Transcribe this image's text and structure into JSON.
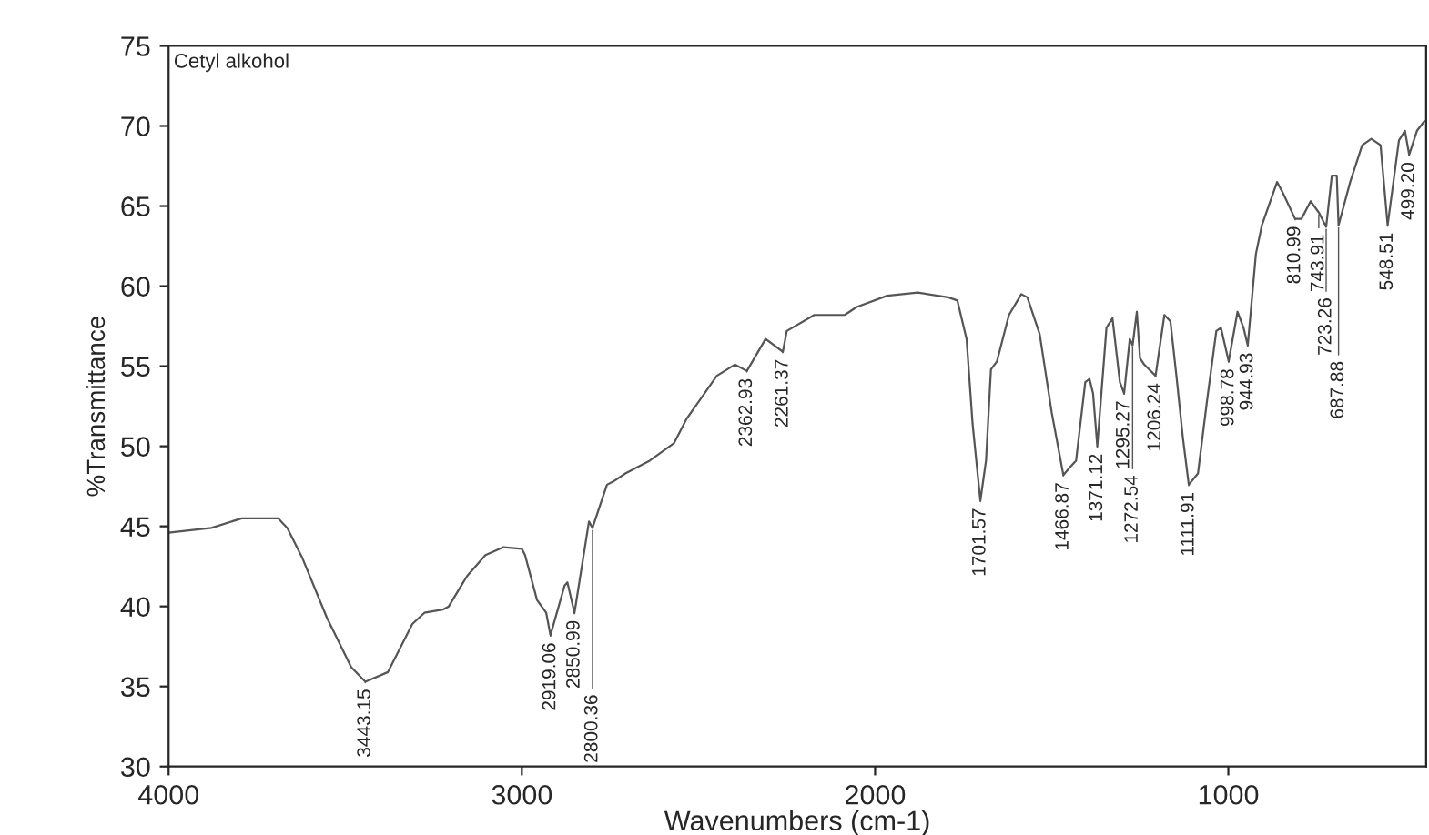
{
  "chart_data": {
    "type": "line",
    "title": "Cetyl alkohol",
    "xlabel": "Wavenumbers (cm-1)",
    "ylabel": "%Transmittance",
    "xlim": [
      4000,
      440
    ],
    "ylim": [
      30,
      75
    ],
    "xticks": [
      4000,
      3000,
      2000,
      1000
    ],
    "yticks": [
      30,
      35,
      40,
      45,
      50,
      55,
      60,
      65,
      70,
      75
    ],
    "grid": false,
    "marker": "none",
    "line_style": "solid",
    "series": [
      {
        "color": "#555555",
        "x": [
          4000,
          3879,
          3793,
          3690,
          3664,
          3621,
          3552,
          3483,
          3443,
          3379,
          3310,
          3276,
          3224,
          3207,
          3155,
          3103,
          3052,
          3000,
          2991,
          2957,
          2931,
          2919,
          2879,
          2871,
          2851,
          2810,
          2800,
          2759,
          2741,
          2707,
          2638,
          2569,
          2534,
          2448,
          2397,
          2363,
          2310,
          2261,
          2250,
          2172,
          2086,
          2052,
          1966,
          1879,
          1793,
          1767,
          1741,
          1724,
          1702,
          1686,
          1672,
          1655,
          1621,
          1586,
          1569,
          1534,
          1500,
          1467,
          1448,
          1431,
          1405,
          1393,
          1383,
          1371,
          1345,
          1328,
          1307,
          1295,
          1279,
          1271,
          1259,
          1250,
          1238,
          1206,
          1181,
          1164,
          1147,
          1129,
          1112,
          1086,
          1060,
          1034,
          1021,
          999,
          974,
          957,
          945,
          922,
          905,
          862,
          845,
          811,
          793,
          767,
          744,
          723,
          707,
          693,
          688,
          655,
          621,
          595,
          569,
          549,
          517,
          500,
          488,
          466,
          445
        ],
        "values": [
          44.6,
          44.9,
          45.5,
          45.5,
          44.9,
          43.0,
          39.3,
          36.2,
          35.3,
          35.9,
          38.9,
          39.6,
          39.8,
          40.0,
          41.9,
          43.2,
          43.7,
          43.6,
          43.2,
          40.4,
          39.6,
          38.2,
          41.3,
          41.5,
          39.6,
          45.3,
          44.9,
          47.6,
          47.8,
          48.3,
          49.1,
          50.2,
          51.7,
          54.4,
          55.1,
          54.7,
          56.7,
          55.9,
          57.2,
          58.2,
          58.2,
          58.7,
          59.4,
          59.6,
          59.3,
          59.1,
          56.7,
          51.4,
          46.6,
          49.1,
          54.8,
          55.3,
          58.2,
          59.5,
          59.3,
          57.0,
          52.1,
          48.2,
          48.7,
          49.1,
          54.0,
          54.2,
          53.3,
          50.0,
          57.4,
          58.0,
          54.0,
          53.3,
          56.7,
          56.3,
          58.4,
          55.5,
          55.1,
          54.4,
          58.2,
          57.8,
          54.4,
          50.6,
          47.6,
          48.3,
          52.9,
          57.2,
          57.4,
          55.3,
          58.4,
          57.4,
          56.3,
          62.0,
          63.8,
          66.5,
          65.8,
          64.2,
          64.2,
          65.3,
          64.6,
          63.7,
          66.9,
          66.9,
          63.8,
          66.5,
          68.8,
          69.2,
          68.8,
          63.8,
          69.1,
          69.7,
          68.2,
          69.7,
          70.3
        ]
      }
    ],
    "annotations": [
      {
        "text": "3443.15",
        "x": 3443,
        "y": 35.3
      },
      {
        "text": "2919.06",
        "x": 2919,
        "y": 38.2
      },
      {
        "text": "2850.99",
        "x": 2851,
        "y": 39.6
      },
      {
        "text": "2800.36",
        "x": 2800,
        "y": 44.9
      },
      {
        "text": "2362.93",
        "x": 2363,
        "y": 54.7
      },
      {
        "text": "2261.37",
        "x": 2261,
        "y": 55.9
      },
      {
        "text": "1701.57",
        "x": 1702,
        "y": 46.6
      },
      {
        "text": "1466.87",
        "x": 1467,
        "y": 48.2
      },
      {
        "text": "1371.12",
        "x": 1371,
        "y": 50.0
      },
      {
        "text": "1295.27",
        "x": 1295,
        "y": 53.3
      },
      {
        "text": "1272.54",
        "x": 1271,
        "y": 56.3
      },
      {
        "text": "1206.24",
        "x": 1206,
        "y": 54.4
      },
      {
        "text": "1111.91",
        "x": 1112,
        "y": 47.6
      },
      {
        "text": "998.78",
        "x": 999,
        "y": 55.3
      },
      {
        "text": "944.93",
        "x": 945,
        "y": 56.3
      },
      {
        "text": "810.99",
        "x": 811,
        "y": 64.2
      },
      {
        "text": "743.91",
        "x": 744,
        "y": 64.6
      },
      {
        "text": "723.26",
        "x": 723,
        "y": 63.7
      },
      {
        "text": "687.88",
        "x": 688,
        "y": 63.8
      },
      {
        "text": "548.51",
        "x": 549,
        "y": 63.8
      },
      {
        "text": "499.20",
        "x": 488,
        "y": 68.2
      }
    ]
  }
}
